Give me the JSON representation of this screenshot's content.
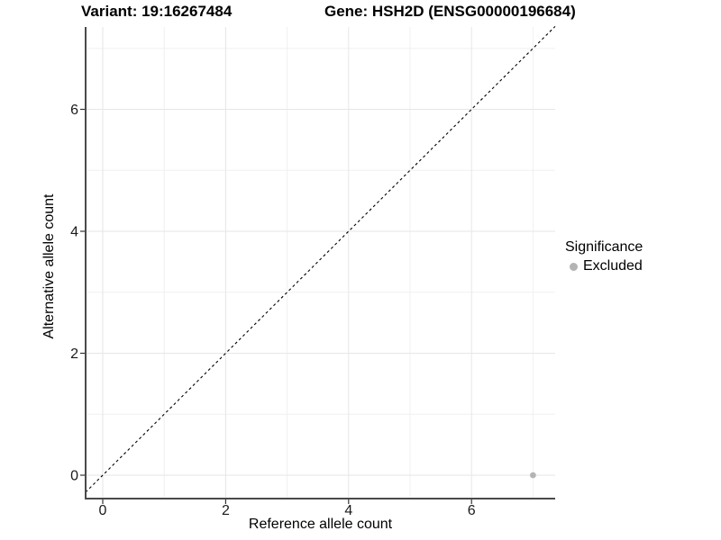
{
  "figure": {
    "title_left": "Variant: 19:16267484",
    "title_right": "Gene: HSH2D (ENSG00000196684)"
  },
  "chart_data": {
    "type": "scatter",
    "title": "Variant: 19:16267484 / Gene: HSH2D (ENSG00000196684)",
    "xlabel": "Reference allele count",
    "ylabel": "Alternative allele count",
    "x_major_ticks": [
      0,
      2,
      4,
      6
    ],
    "y_major_ticks": [
      0,
      2,
      4,
      6
    ],
    "x_minor_ticks": [
      1,
      3,
      5,
      7
    ],
    "y_minor_ticks": [
      1,
      3,
      5,
      7
    ],
    "xlim": [
      -0.28,
      7.36
    ],
    "ylim": [
      -0.38,
      7.36
    ],
    "grid": "major and minor, light gray, on white panel",
    "identity_line": {
      "style": "dashed",
      "color": "#000000",
      "from": [
        -0.28,
        -0.28
      ],
      "to": [
        7.36,
        7.36
      ]
    },
    "series": [
      {
        "name": "Excluded",
        "color": "#b4b4b4",
        "points": [
          {
            "x": 7,
            "y": 0
          }
        ]
      }
    ],
    "legend": {
      "title": "Significance",
      "position": "right",
      "entries": [
        {
          "label": "Excluded",
          "color": "#b4b4b4"
        }
      ]
    }
  },
  "style": {
    "axis_line_color": "#4a4a4a",
    "tick_color": "#333333",
    "tick_label_color": "#1a1a1a",
    "grid_major_color": "#e6e6e6",
    "grid_minor_color": "#f0f0f0",
    "background": "#ffffff"
  }
}
